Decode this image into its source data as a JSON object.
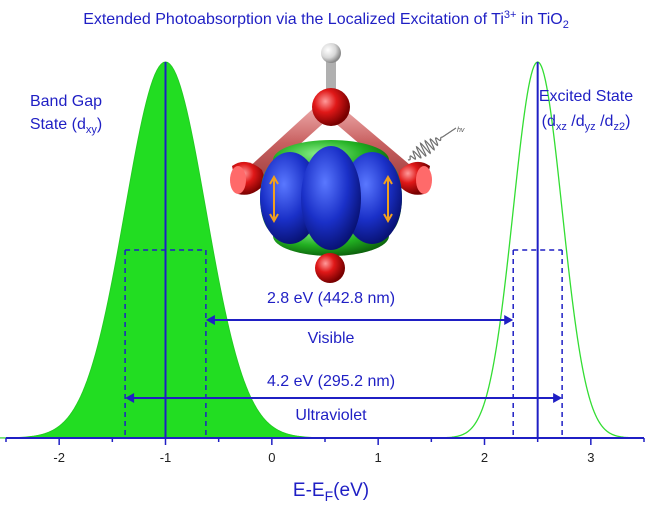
{
  "title": {
    "prefix": "Extended Photoabsorption via the Localized Excitation of  Ti",
    "sup": "3+",
    "middle": " in TiO",
    "sub": "2"
  },
  "left_label": {
    "line1": "Band Gap",
    "line2_prefix": "State (d",
    "line2_sub": "xy",
    "line2_suffix": ")"
  },
  "right_label": {
    "line1": "Excited State",
    "line2": [
      "(d",
      "xz",
      " /d",
      "yz",
      " /d",
      "z2",
      ")"
    ]
  },
  "photon_label": "hv",
  "transitions": [
    {
      "energy_label": "2.8 eV (442.8 nm)",
      "region_label": "Visible",
      "from": -0.62,
      "to": 2.27
    },
    {
      "energy_label": "4.2 eV (295.2 nm)",
      "region_label": "Ultraviolet",
      "from": -1.38,
      "to": 2.73
    }
  ],
  "chart_data": {
    "type": "area",
    "xlabel": {
      "main": "E-E",
      "sub": "F",
      "tail": "(eV)"
    },
    "xlim": [
      -2.5,
      3.5
    ],
    "xticks": [
      -2,
      -1,
      0,
      1,
      2,
      3
    ],
    "xtick_labels": [
      "-2",
      "-1",
      "0",
      "1",
      "2",
      "3"
    ],
    "series": [
      {
        "center": -1.0,
        "sigma": 0.38,
        "peak": 1.0,
        "fill": "#22dd22",
        "stroke": "#22cc22",
        "filled": true,
        "half_width_markers": [
          -1.38,
          -0.62
        ]
      },
      {
        "center": 2.5,
        "sigma": 0.23,
        "peak": 1.0,
        "fill": "none",
        "stroke": "#33dd33",
        "filled": false,
        "half_width_markers": [
          2.27,
          2.73
        ]
      }
    ]
  },
  "colors": {
    "text": "#1f1fc4",
    "axis": "#1f1fc4",
    "gaussian_fill": "#22dd22",
    "molecule_red": "#d81818",
    "orbital_blue": "#1528c8",
    "orbital_green": "#22b022",
    "bond_pink": "#d87878"
  }
}
